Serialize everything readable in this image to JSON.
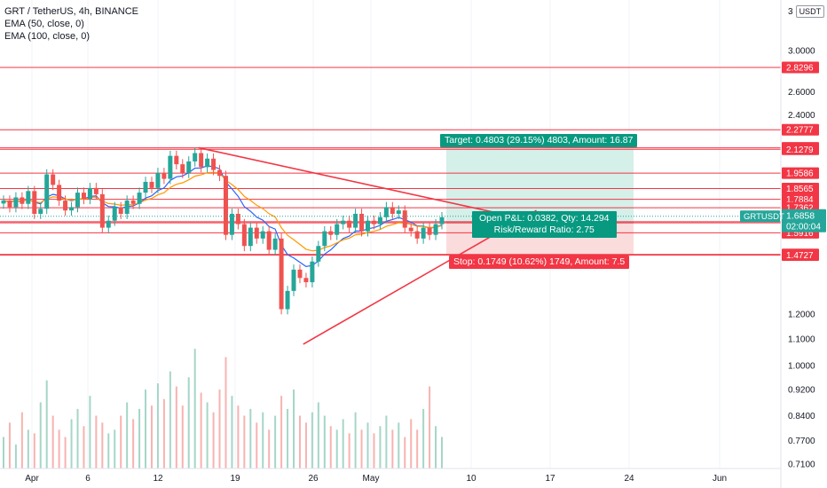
{
  "legend": {
    "symbol": "GRT / TetherUS, 4h, BINANCE",
    "ema50": "EMA (50, close, 0)",
    "ema100": "EMA (100, close, 0)"
  },
  "scale": {
    "number": "3",
    "currency": "USDT"
  },
  "position": {
    "target": "Target: 0.4803 (29.15%) 4803, Amount: 16.87",
    "open_pnl": "Open P&L: 0.0382, Qty: 14.294",
    "rr": "Risk/Reward Ratio: 2.75",
    "stop": "Stop: 0.1749 (10.62%) 1749, Amount: 7.5"
  },
  "colors": {
    "up": "#26a69a",
    "down": "#ef5350",
    "level": "#f23645",
    "trend": "#f23645",
    "ema50": "#2962ff",
    "ema100": "#ff9800",
    "target_fill": "#d5efe9",
    "stop_fill": "#fbdcdc",
    "last": "#26a69a"
  },
  "chart_data": {
    "type": "candlestick",
    "scale": "log",
    "ylim": [
      0.7,
      3.3
    ],
    "x_ticks": [
      "Apr",
      "6",
      "12",
      "19",
      "26",
      "May",
      "10",
      "17",
      "24",
      "Jun"
    ],
    "y_ticks": [
      "3.0000",
      "2.6000",
      "2.4000",
      "1.2000",
      "1.1000",
      "1.0000",
      "0.9200",
      "0.8400",
      "0.7700",
      "0.7100"
    ],
    "horizontal_levels": [
      "2.8296",
      "2.2777",
      "2.1387",
      "2.1279",
      "1.9586",
      "1.8565",
      "1.7884",
      "1.7362",
      "1.6543",
      "1.6476",
      "1.5916",
      "1.4759",
      "1.4727"
    ],
    "last_price": {
      "symbol": "GRTUSDT",
      "price": "1.6858",
      "countdown": "02:00:04"
    },
    "trendlines": [
      {
        "from": [
          "Apr 14",
          2.14
        ],
        "to": [
          "May 9",
          1.655
        ]
      },
      {
        "from": [
          "Apr 22",
          1.08
        ],
        "to": [
          "May 9",
          1.72
        ]
      }
    ],
    "position_tool": {
      "entry": 1.6476,
      "target": 2.1279,
      "stop": 1.4727
    },
    "price_path": [
      1.78,
      1.74,
      1.8,
      1.76,
      1.84,
      1.7,
      1.73,
      1.95,
      1.88,
      1.78,
      1.72,
      1.74,
      1.83,
      1.79,
      1.86,
      1.82,
      1.62,
      1.66,
      1.74,
      1.7,
      1.78,
      1.76,
      1.83,
      1.9,
      1.86,
      1.96,
      1.92,
      2.08,
      2.02,
      1.96,
      2.04,
      2.1,
      2.0,
      2.06,
      1.98,
      1.94,
      1.58,
      1.7,
      1.64,
      1.52,
      1.62,
      1.56,
      1.6,
      1.5,
      1.56,
      1.22,
      1.3,
      1.4,
      1.36,
      1.34,
      1.44,
      1.52,
      1.6,
      1.58,
      1.64,
      1.66,
      1.62,
      1.7,
      1.6,
      1.66,
      1.64,
      1.68,
      1.74,
      1.7,
      1.72,
      1.62,
      1.6,
      1.56,
      1.62,
      1.58,
      1.64,
      1.68
    ],
    "volume_path": [
      0.78,
      0.82,
      0.76,
      0.85,
      0.8,
      0.79,
      0.88,
      0.95,
      0.84,
      0.8,
      0.78,
      0.83,
      0.86,
      0.81,
      0.9,
      0.84,
      0.82,
      0.79,
      0.8,
      0.84,
      0.88,
      0.83,
      0.86,
      0.92,
      0.87,
      0.94,
      0.89,
      0.98,
      0.93,
      0.87,
      0.96,
      1.06,
      0.91,
      0.88,
      0.85,
      0.92,
      1.03,
      0.9,
      0.87,
      0.84,
      0.86,
      0.82,
      0.85,
      0.8,
      0.84,
      0.9,
      0.86,
      0.92,
      0.84,
      0.82,
      0.85,
      0.88,
      0.84,
      0.81,
      0.8,
      0.83,
      0.79,
      0.85,
      0.8,
      0.82,
      0.79,
      0.81,
      0.84,
      0.8,
      0.82,
      0.78,
      0.83,
      0.8,
      0.86,
      0.93,
      0.81,
      0.78
    ]
  }
}
